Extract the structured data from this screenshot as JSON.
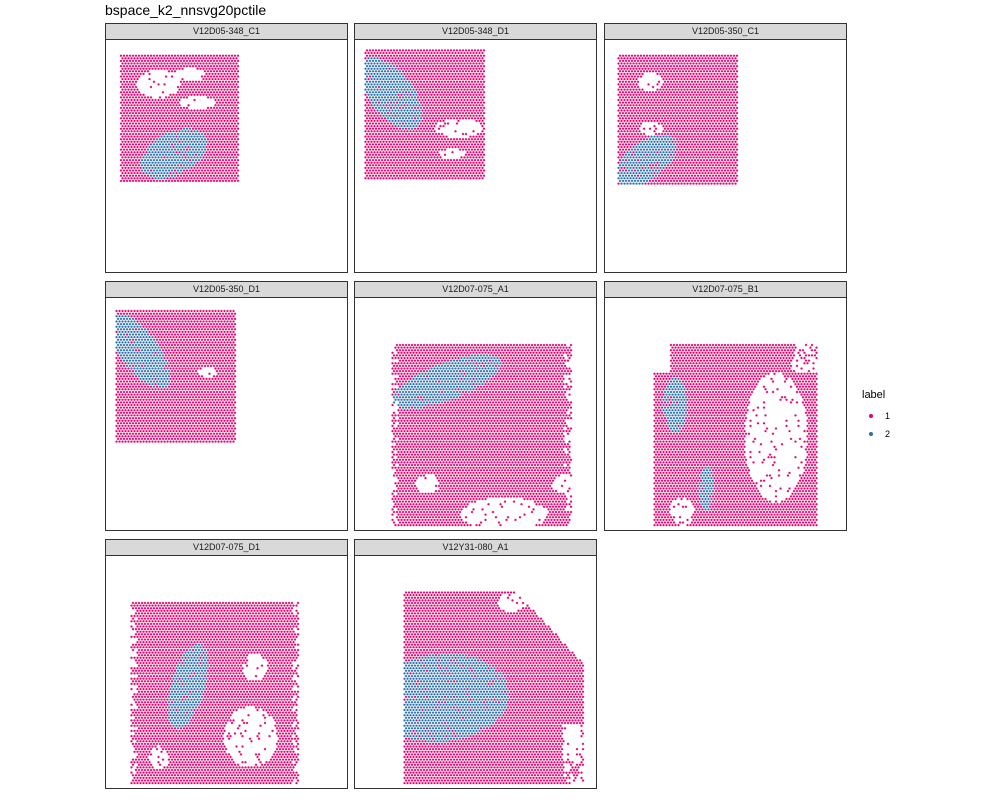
{
  "chart_data": {
    "type": "scatter",
    "title": "bspace_k2_nnsvg20pctile",
    "facet_layout": {
      "ncol": 3,
      "nrow": 3
    },
    "legend": {
      "title": "label",
      "placement": "right",
      "entries": [
        {
          "label": "1",
          "color": "#e7006f"
        },
        {
          "label": "2",
          "color": "#2c6fac"
        }
      ]
    },
    "axes": {
      "shown": false,
      "grid": false
    },
    "panels": [
      {
        "name": "V12D05-348_C1",
        "tissue": {
          "x": [
            0.06,
            0.55
          ],
          "y": [
            0.06,
            0.61
          ],
          "mask": "square"
        },
        "clusters": [
          {
            "label": "2",
            "cx": 0.28,
            "cy": 0.49,
            "rx": 0.15,
            "ry": 0.09,
            "angle": -30
          }
        ],
        "holes": [
          {
            "cx": 0.22,
            "cy": 0.19,
            "rx": 0.09,
            "ry": 0.06
          },
          {
            "cx": 0.38,
            "cy": 0.27,
            "rx": 0.08,
            "ry": 0.025
          },
          {
            "cx": 0.35,
            "cy": 0.15,
            "rx": 0.06,
            "ry": 0.03
          }
        ]
      },
      {
        "name": "V12D05-348_D1",
        "tissue": {
          "x": [
            0.04,
            0.54
          ],
          "y": [
            0.04,
            0.6
          ],
          "mask": "square"
        },
        "clusters": [
          {
            "label": "2",
            "cx": 0.15,
            "cy": 0.23,
            "rx": 0.09,
            "ry": 0.18,
            "angle": -35
          }
        ],
        "holes": [
          {
            "cx": 0.43,
            "cy": 0.38,
            "rx": 0.1,
            "ry": 0.04
          },
          {
            "cx": 0.4,
            "cy": 0.49,
            "rx": 0.06,
            "ry": 0.02
          }
        ]
      },
      {
        "name": "V12D05-350_C1",
        "tissue": {
          "x": [
            0.05,
            0.55
          ],
          "y": [
            0.06,
            0.62
          ],
          "mask": "square"
        },
        "clusters": [
          {
            "label": "2",
            "cx": 0.17,
            "cy": 0.52,
            "rx": 0.15,
            "ry": 0.08,
            "angle": -40
          }
        ],
        "holes": [
          {
            "cx": 0.19,
            "cy": 0.18,
            "rx": 0.05,
            "ry": 0.04
          },
          {
            "cx": 0.19,
            "cy": 0.38,
            "rx": 0.05,
            "ry": 0.03
          }
        ]
      },
      {
        "name": "V12D05-350_D1",
        "tissue": {
          "x": [
            0.04,
            0.54
          ],
          "y": [
            0.05,
            0.62
          ],
          "mask": "square"
        },
        "clusters": [
          {
            "label": "2",
            "cx": 0.14,
            "cy": 0.23,
            "rx": 0.08,
            "ry": 0.19,
            "angle": -35
          }
        ],
        "holes": [
          {
            "cx": 0.42,
            "cy": 0.32,
            "rx": 0.04,
            "ry": 0.02
          }
        ]
      },
      {
        "name": "V12D07-075_A1",
        "tissue": {
          "x": [
            0.15,
            0.9
          ],
          "y": [
            0.2,
            0.98
          ],
          "mask": "square-ragged"
        },
        "clusters": [
          {
            "label": "2",
            "cx": 0.38,
            "cy": 0.36,
            "rx": 0.24,
            "ry": 0.08,
            "angle": -22
          }
        ],
        "holes": [
          {
            "cx": 0.62,
            "cy": 0.93,
            "rx": 0.18,
            "ry": 0.07
          },
          {
            "cx": 0.3,
            "cy": 0.8,
            "rx": 0.05,
            "ry": 0.04
          },
          {
            "cx": 0.86,
            "cy": 0.8,
            "rx": 0.04,
            "ry": 0.04
          }
        ]
      },
      {
        "name": "V12D07-075_B1",
        "tissue": {
          "x": [
            0.2,
            0.88
          ],
          "y": [
            0.2,
            0.98
          ],
          "mask": "notched"
        },
        "clusters": [
          {
            "label": "2",
            "cx": 0.29,
            "cy": 0.46,
            "rx": 0.05,
            "ry": 0.12,
            "angle": 0
          },
          {
            "label": "2",
            "cx": 0.42,
            "cy": 0.82,
            "rx": 0.03,
            "ry": 0.1,
            "angle": 0
          }
        ],
        "holes": [
          {
            "cx": 0.71,
            "cy": 0.6,
            "rx": 0.13,
            "ry": 0.28
          },
          {
            "cx": 0.32,
            "cy": 0.92,
            "rx": 0.05,
            "ry": 0.06
          }
        ]
      },
      {
        "name": "V12D07-075_D1",
        "tissue": {
          "x": [
            0.1,
            0.8
          ],
          "y": [
            0.2,
            0.98
          ],
          "mask": "square-ragged"
        },
        "clusters": [
          {
            "label": "2",
            "cx": 0.34,
            "cy": 0.56,
            "rx": 0.07,
            "ry": 0.19,
            "angle": 15
          }
        ],
        "holes": [
          {
            "cx": 0.6,
            "cy": 0.78,
            "rx": 0.11,
            "ry": 0.13
          },
          {
            "cx": 0.62,
            "cy": 0.48,
            "rx": 0.05,
            "ry": 0.06
          },
          {
            "cx": 0.22,
            "cy": 0.87,
            "rx": 0.04,
            "ry": 0.05
          }
        ]
      },
      {
        "name": "V12Y31-080_A1",
        "tissue": {
          "x": [
            0.2,
            0.95
          ],
          "y": [
            0.15,
            0.98
          ],
          "mask": "chamfer"
        },
        "clusters": [
          {
            "label": "2",
            "cx": 0.36,
            "cy": 0.61,
            "rx": 0.28,
            "ry": 0.19,
            "angle": -6
          }
        ],
        "holes": [
          {
            "cx": 0.9,
            "cy": 0.8,
            "rx": 0.04,
            "ry": 0.08
          },
          {
            "cx": 0.65,
            "cy": 0.2,
            "rx": 0.06,
            "ry": 0.04
          }
        ]
      }
    ]
  }
}
